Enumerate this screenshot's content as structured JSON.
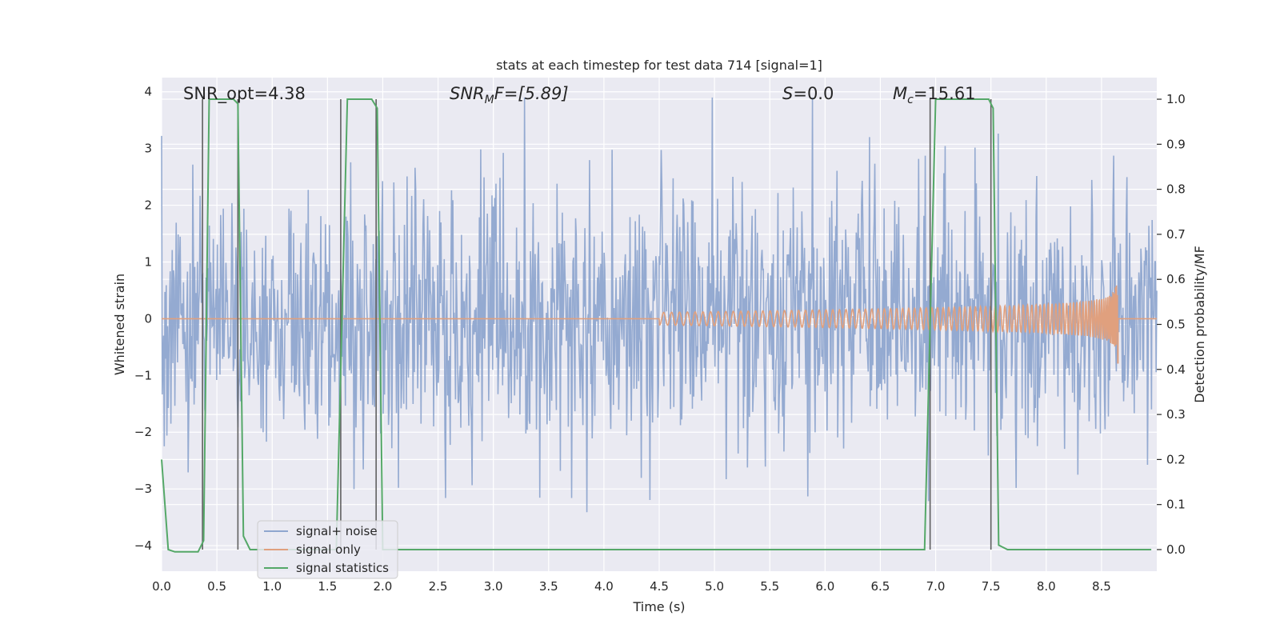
{
  "chart_data": {
    "type": "line",
    "title": "stats at each timestep for test data 714 [signal=1]",
    "xlabel": "Time (s)",
    "ylabel": "Whitened strain",
    "y2label": "Detection probability/MF",
    "xlim": [
      0,
      9.0
    ],
    "ylim": [
      -4.45,
      4.25
    ],
    "y2lim": [
      -0.048,
      1.048
    ],
    "xticks": [
      "0.0",
      "0.5",
      "1.0",
      "1.5",
      "2.0",
      "2.5",
      "3.0",
      "3.5",
      "4.0",
      "4.5",
      "5.0",
      "5.5",
      "6.0",
      "6.5",
      "7.0",
      "7.5",
      "8.0",
      "8.5"
    ],
    "yticks": [
      "4",
      "3",
      "2",
      "1",
      "0",
      "−1",
      "−2",
      "−3",
      "−4"
    ],
    "y2ticks": [
      "1.0",
      "0.9",
      "0.8",
      "0.7",
      "0.6",
      "0.5",
      "0.4",
      "0.3",
      "0.2",
      "0.1",
      "0.0"
    ],
    "grid": true,
    "legend_position": "lower-left",
    "annotations": {
      "snr_opt": "SNR_opt=4.38",
      "snr_mf_main": "SNR",
      "snr_mf_sub": "M",
      "snr_mf_rest": "F=[5.89]",
      "s_main": "S",
      "s_rest": "=0.0",
      "mc_main": "M",
      "mc_sub": "c",
      "mc_rest": "=15.61"
    },
    "series": [
      {
        "name": "signal+ noise",
        "color": "#8fa6cf",
        "description_range": [
          -4.0,
          3.9
        ]
      },
      {
        "name": "signal only",
        "color": "#e0a07e",
        "chirp_start": 4.5,
        "chirp_end": 8.65,
        "peak_amplitude": 0.78
      },
      {
        "name": "signal statistics",
        "color": "#55a868",
        "x": [
          0.0,
          0.06,
          0.12,
          0.2,
          0.28,
          0.33,
          0.38,
          0.43,
          0.5,
          0.65,
          0.69,
          0.74,
          0.8,
          0.88,
          1.0,
          1.2,
          1.4,
          1.58,
          1.68,
          1.9,
          1.95,
          2.0,
          2.05,
          2.2,
          4.0,
          6.0,
          6.8,
          6.9,
          7.0,
          7.2,
          7.48,
          7.52,
          7.57,
          7.65,
          8.0,
          8.95
        ],
        "y": [
          0.2,
          0.0,
          -0.005,
          -0.005,
          -0.005,
          -0.005,
          0.02,
          1.0,
          1.0,
          1.0,
          0.99,
          0.03,
          0.0,
          0.0,
          0.0,
          0.0,
          0.0,
          0.0,
          1.0,
          1.0,
          0.98,
          0.0,
          0.0,
          0.0,
          0.0,
          0.0,
          0.0,
          0.0,
          1.0,
          1.0,
          1.0,
          0.98,
          0.01,
          0.0,
          0.0,
          0.0
        ]
      }
    ],
    "markers": [
      0.37,
      0.69,
      1.62,
      1.94,
      6.95,
      7.5
    ],
    "marker_color": "#606060"
  },
  "legend": {
    "items": [
      {
        "label": "signal+ noise",
        "color": "#8fa6cf"
      },
      {
        "label": "signal only",
        "color": "#e0a07e"
      },
      {
        "label": "signal statistics",
        "color": "#55a868"
      }
    ]
  },
  "colors": {
    "plot_background": "#eaeaf2",
    "grid": "#ffffff"
  }
}
